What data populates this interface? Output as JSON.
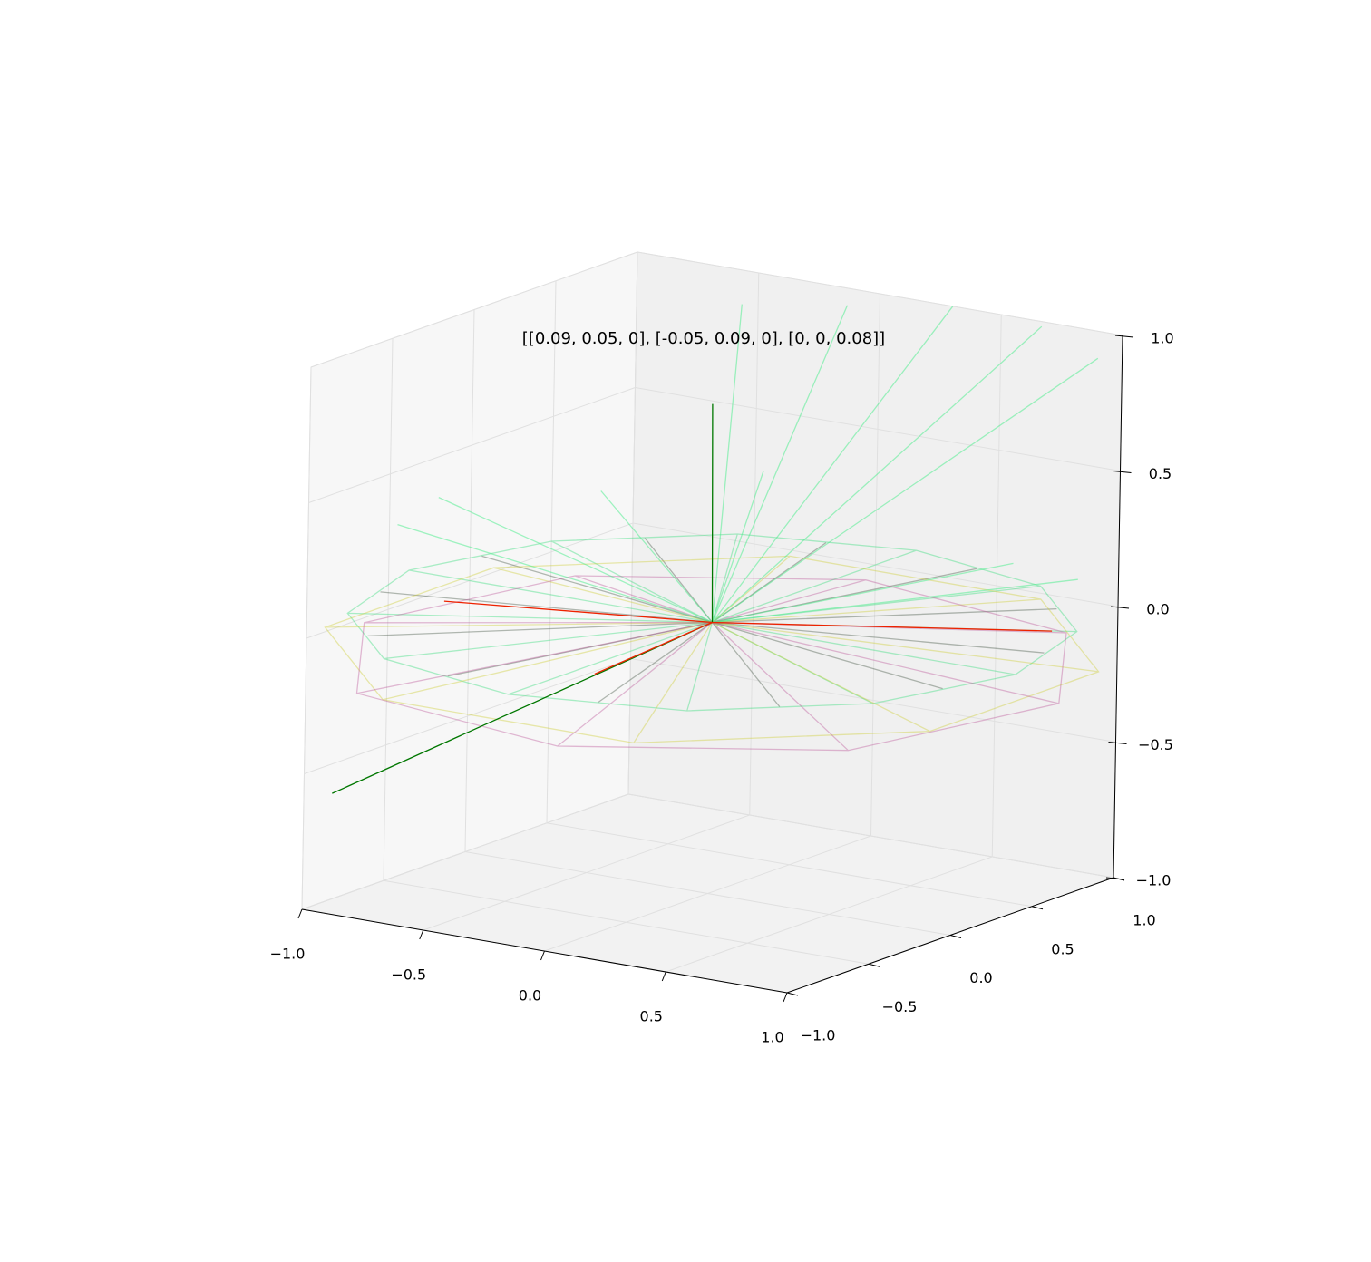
{
  "chart_data": {
    "type": "line3d",
    "title": "[[0.09, 0.05, 0], [-0.05, 0.09, 0], [0, 0, 0.08]]",
    "xlim": [
      -1,
      1
    ],
    "ylim": [
      -1,
      1
    ],
    "zlim": [
      -1,
      1
    ],
    "xticks": [
      {
        "value": -1,
        "label": "−1.0"
      },
      {
        "value": -0.5,
        "label": "−0.5"
      },
      {
        "value": 0,
        "label": "0.0"
      },
      0.5,
      {
        "value": 1,
        "label": "1.0"
      }
    ],
    "yticks": [
      {
        "value": -1,
        "label": "−1.0"
      },
      {
        "value": -0.5,
        "label": "−0.5"
      },
      {
        "value": 0,
        "label": "0.0"
      },
      0.5,
      {
        "value": 1,
        "label": "1.0"
      }
    ],
    "zticks": [
      {
        "value": -1,
        "label": "−1.0"
      },
      {
        "value": -0.5,
        "label": "−0.5"
      },
      {
        "value": 0,
        "label": "0.0"
      },
      0.5,
      {
        "value": 1,
        "label": "1.0"
      }
    ],
    "grid": true,
    "series": [
      {
        "color": "#33dd77",
        "opacity": 0.4,
        "x": [
          0,
          1.25,
          0,
          1.083,
          0,
          0.625,
          0,
          0,
          0,
          -0.625,
          0,
          -1.083,
          0,
          -1.25,
          0,
          -1.083,
          0,
          -0.625,
          0,
          0,
          0,
          0.625,
          0,
          1.083,
          1.25,
          1.083,
          0.625,
          0,
          -0.625,
          -1.083,
          -1.25,
          -1.083,
          -0.625,
          0,
          0.625,
          1.083,
          1.25
        ],
        "y": [
          0,
          0,
          0,
          0.625,
          0,
          1.083,
          0,
          1.25,
          0,
          1.083,
          0,
          0.625,
          0,
          0,
          0,
          -0.625,
          0,
          -1.083,
          0,
          -1.25,
          0,
          -1.083,
          0,
          -0.625,
          0,
          0.625,
          1.083,
          1.25,
          1.083,
          0.625,
          0,
          -0.625,
          -1.083,
          -1.25,
          -1.083,
          -0.625,
          0
        ],
        "z": [
          0,
          0,
          0,
          0,
          0,
          0,
          0,
          0,
          0,
          0,
          0,
          0,
          0,
          0,
          0,
          0,
          0,
          0,
          0,
          0,
          0,
          0,
          0,
          0,
          0,
          0,
          0,
          0,
          0,
          0,
          0,
          0,
          0,
          0,
          0,
          0,
          0
        ]
      },
      {
        "color": "#445544",
        "opacity": 0.4,
        "x": [
          0,
          1.159,
          0,
          0.849,
          0,
          0.311,
          0,
          -0.311,
          0,
          -0.849,
          0,
          -1.159,
          0,
          -1.159,
          0,
          -0.849,
          0,
          -0.311,
          0,
          0.311,
          0,
          0.849,
          0,
          1.159
        ],
        "y": [
          0,
          0.311,
          0,
          0.849,
          0,
          1.159,
          0,
          1.159,
          0,
          0.849,
          0,
          0.311,
          0,
          -0.311,
          0,
          -0.849,
          0,
          -1.159,
          0,
          -1.159,
          0,
          -0.849,
          0,
          -0.311
        ],
        "z": [
          0,
          0,
          0,
          0,
          0,
          0,
          0,
          0,
          0,
          0,
          0,
          0,
          0,
          0,
          0,
          0,
          0,
          0,
          0,
          0,
          0,
          0,
          0,
          0
        ]
      },
      {
        "color": "#cccc33",
        "opacity": 0.4,
        "x": [
          0,
          1.247,
          0,
          0.517,
          0,
          -0.517,
          0,
          -1.247,
          0,
          -1.247,
          0,
          -0.517,
          0,
          0.517,
          0,
          1.247,
          1.247,
          0.517,
          -0.517,
          -1.247,
          -1.247,
          -0.517,
          0.517,
          1.247,
          1.247
        ],
        "y": [
          0,
          0.517,
          0,
          1.247,
          0,
          1.247,
          0,
          0.517,
          0,
          -0.517,
          0,
          -1.247,
          0,
          -1.247,
          0,
          -0.517,
          0.517,
          1.247,
          1.247,
          0.517,
          -0.517,
          -1.247,
          -1.247,
          -0.517,
          0.517
        ],
        "z": [
          0,
          -0.1,
          0,
          -0.1,
          0,
          -0.1,
          0,
          -0.1,
          0,
          -0.1,
          0,
          -0.1,
          0,
          -0.1,
          0,
          -0.1,
          -0.1,
          -0.1,
          -0.1,
          -0.1,
          -0.1,
          -0.1,
          -0.1,
          -0.1,
          -0.1
        ]
      },
      {
        "color": "#bb5599",
        "opacity": 0.4,
        "x": [
          0,
          1.28,
          0,
          0.746,
          0,
          -0.226,
          0,
          -1.065,
          0,
          -1.28,
          0,
          -0.746,
          0,
          0.226,
          0,
          1.065,
          1.28,
          0.746,
          -0.226,
          -1.065,
          -1.28,
          -0.746,
          0.226,
          1.065,
          1.28
        ],
        "y": [
          0,
          0.226,
          0,
          1.065,
          0,
          1.28,
          0,
          0.746,
          0,
          -0.226,
          0,
          -1.065,
          0,
          -1.28,
          0,
          -0.746,
          0.226,
          1.065,
          1.28,
          0.746,
          -0.226,
          -1.065,
          -1.28,
          -0.746,
          0.226
        ],
        "z": [
          0,
          -0.15,
          0,
          -0.15,
          0,
          -0.15,
          0,
          -0.15,
          0,
          -0.15,
          0,
          -0.15,
          0,
          -0.15,
          0,
          -0.15,
          -0.15,
          -0.15,
          -0.15,
          -0.15,
          -0.15,
          -0.15,
          -0.15,
          -0.15,
          -0.15
        ]
      },
      {
        "color": "#44ee88",
        "opacity": 0.5,
        "x": [
          0,
          -0.3,
          0,
          0,
          0,
          0.3,
          0,
          0.6,
          0,
          0.9,
          0,
          -0.9,
          0,
          -1,
          0,
          -0.6,
          0,
          -0.2,
          0,
          0.9,
          0,
          1.1
        ],
        "y": [
          0,
          0.6,
          0,
          0.8,
          0,
          1,
          0,
          1.1,
          0,
          1,
          0,
          -0.6,
          0,
          -0.2,
          0,
          0.2,
          0,
          0.6,
          0,
          0.5,
          0,
          0.6
        ],
        "z": [
          0,
          1,
          0,
          1,
          0,
          1,
          0,
          0.95,
          0,
          0.9,
          0,
          0.35,
          0,
          0.35,
          0,
          0.35,
          0,
          0.4,
          0,
          0.25,
          0,
          0.2
        ]
      },
      {
        "color": "#007700",
        "opacity": 1,
        "x": [
          0.29,
          0,
          0
        ],
        "y": [
          -2.76,
          0,
          -0.02
        ],
        "z": [
          0,
          0,
          0.81
        ]
      },
      {
        "color": "#ee2200",
        "opacity": 1,
        "x": [
          -0.91,
          0,
          1.01,
          null,
          0,
          0.08
        ],
        "y": [
          -0.29,
          0,
          0.58,
          null,
          0,
          -0.84
        ],
        "z": [
          0,
          0,
          0,
          null,
          0,
          0
        ]
      }
    ]
  }
}
